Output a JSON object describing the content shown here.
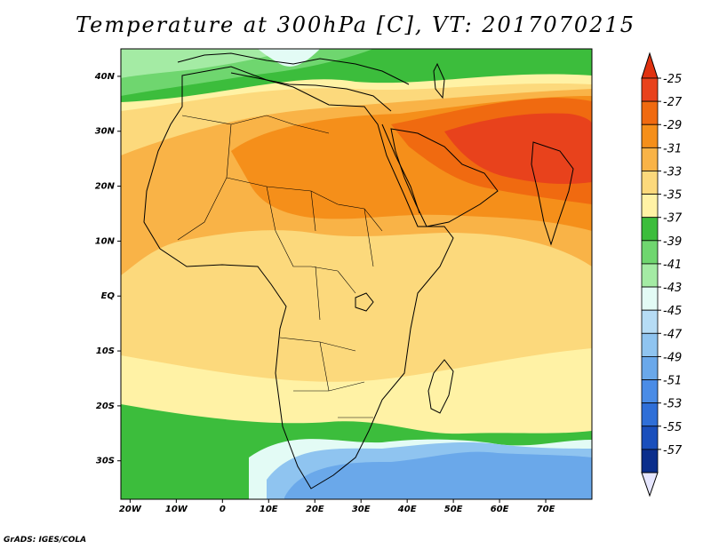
{
  "title": "Temperature at 300hPa [C], VT: 2017070215",
  "credit": "GrADS: IGES/COLA",
  "map": {
    "lon_range": [
      -22,
      80
    ],
    "lat_range": [
      -37,
      45
    ],
    "lon_ticks": [
      {
        "v": -20,
        "label": "20W"
      },
      {
        "v": -10,
        "label": "10W"
      },
      {
        "v": 0,
        "label": "0"
      },
      {
        "v": 10,
        "label": "10E"
      },
      {
        "v": 20,
        "label": "20E"
      },
      {
        "v": 30,
        "label": "30E"
      },
      {
        "v": 40,
        "label": "40E"
      },
      {
        "v": 50,
        "label": "50E"
      },
      {
        "v": 60,
        "label": "60E"
      },
      {
        "v": 70,
        "label": "70E"
      }
    ],
    "lat_ticks": [
      {
        "v": 40,
        "label": "40N"
      },
      {
        "v": 30,
        "label": "30N"
      },
      {
        "v": 20,
        "label": "20N"
      },
      {
        "v": 10,
        "label": "10N"
      },
      {
        "v": 0,
        "label": "EQ"
      },
      {
        "v": -10,
        "label": "10S"
      },
      {
        "v": -20,
        "label": "20S"
      },
      {
        "v": -30,
        "label": "30S"
      }
    ]
  },
  "colorbar": {
    "labels": [
      "-25",
      "-27",
      "-29",
      "-31",
      "-33",
      "-35",
      "-37",
      "-39",
      "-41",
      "-43",
      "-45",
      "-47",
      "-49",
      "-51",
      "-53",
      "-55",
      "-57"
    ],
    "colors": [
      "#e8421c",
      "#f06a10",
      "#f58f1a",
      "#f9b347",
      "#fcd97c",
      "#fff2a5",
      "#3cbd3c",
      "#6fd66f",
      "#a4eba4",
      "#e3fbf5",
      "#b6dcf5",
      "#8fc4f0",
      "#6aa8ea",
      "#4a8ce6",
      "#2f6fd8",
      "#1a4fbc",
      "#0b2e8c"
    ],
    "top_color": "#e03210",
    "bottom_color": "#e6e6ff"
  }
}
